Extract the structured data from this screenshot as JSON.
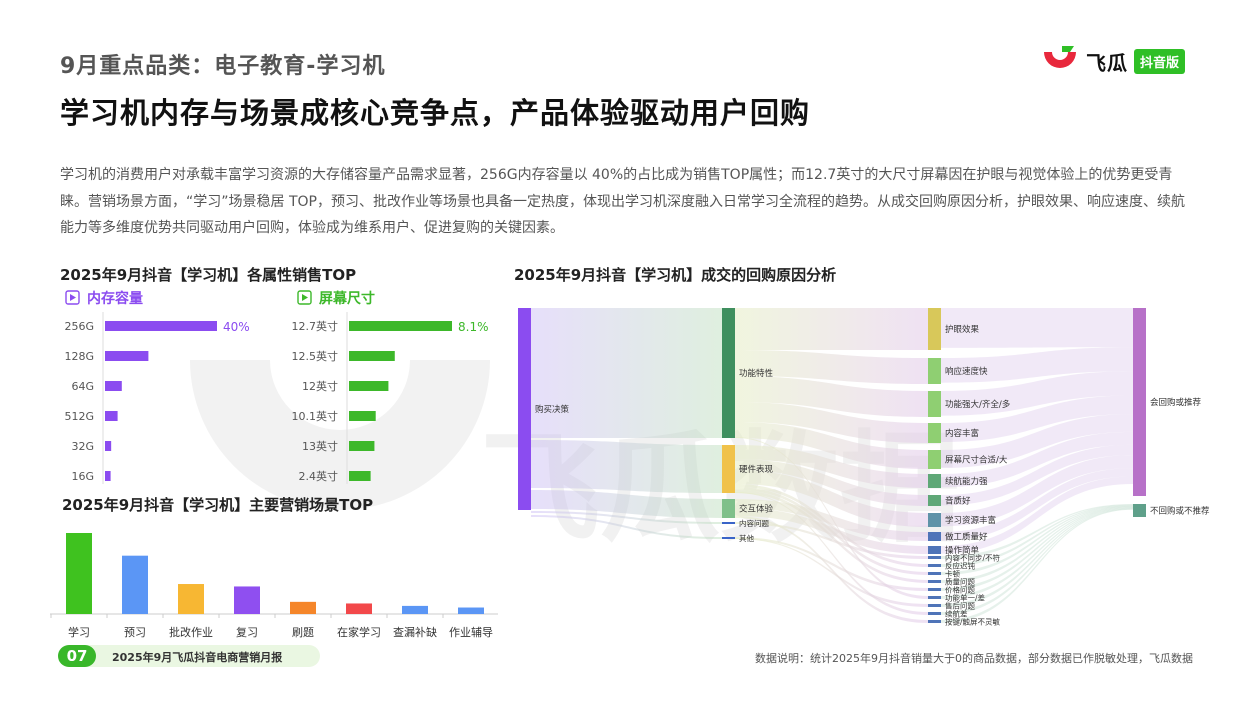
{
  "header": {
    "subtitle": "9月重点品类：电子教育-学习机",
    "headline": "学习机内存与场景成核心竞争点，产品体验驱动用户回购",
    "intro": "学习机的消费用户对承载丰富学习资源的大存储容量产品需求显著，256G内存容量以  40%的占比成为销售TOP属性；而12.7英寸的大尺寸屏幕因在护眼与视觉体验上的优势更受青睐。营销场景方面，“学习”场景稳居 TOP，预习、批改作业等场景也具备一定热度，体现出学习机深度融入日常学习全流程的趋势。从成交回购原因分析，护眼效果、响应速度、续航能力等多维度优势共同驱动用户回购，体验成为维系用户、促进复购的关键因素。"
  },
  "logo": {
    "text": "飞瓜",
    "badge": "抖音版",
    "brand_red": "#e8283c",
    "brand_green": "#2fbf26"
  },
  "watermark": "飞瓜数据",
  "panels": {
    "attr_title": "2025年9月抖音【学习机】各属性销售TOP",
    "scene_title": "2025年9月抖音【学习机】主要营销场景TOP",
    "sankey_title": "2025年9月抖音【学习机】成交的回购原因分析"
  },
  "footer": {
    "page_number": "07",
    "report": "2025年9月飞瓜抖音电商营销月报",
    "note": "数据说明：统计2025年9月抖音销量大于0的商品数据，部分数据已作脱敏处理，飞瓜数据"
  },
  "chart_data": [
    {
      "type": "bar",
      "orientation": "horizontal",
      "title": "内存容量",
      "icon": "play-icon",
      "color": "#8b4cf0",
      "categories": [
        "256G",
        "128G",
        "64G",
        "512G",
        "32G",
        "16G"
      ],
      "values": [
        40,
        15.5,
        6,
        4.5,
        2.2,
        2
      ],
      "value_labels": [
        "40%",
        "",
        "",
        "",
        "",
        ""
      ],
      "unit": "%"
    },
    {
      "type": "bar",
      "orientation": "horizontal",
      "title": "屏幕尺寸",
      "icon": "play-icon",
      "color": "#3db82a",
      "categories": [
        "12.7英寸",
        "12.5英寸",
        "12英寸",
        "10.1英寸",
        "13英寸",
        "2.4英寸"
      ],
      "values": [
        8.1,
        3.6,
        3.1,
        2.1,
        2.0,
        1.7
      ],
      "value_labels": [
        "8.1%",
        "",
        "",
        "",
        "",
        ""
      ],
      "unit": "%"
    },
    {
      "type": "bar",
      "orientation": "vertical",
      "categories": [
        "学习",
        "预习",
        "批改作业",
        "复习",
        "刷题",
        "在家学习",
        "查漏补缺",
        "作业辅导"
      ],
      "values": [
        100,
        72,
        37,
        34,
        15,
        13,
        10,
        8
      ],
      "colors": [
        "#3fc21f",
        "#5b96f5",
        "#f7b733",
        "#8f4ff0",
        "#f5862a",
        "#f2484a",
        "#5b96f5",
        "#5b96f5"
      ]
    },
    {
      "type": "sankey",
      "nodes": [
        {
          "id": "buy",
          "label": "购买决策",
          "color": "#8b4cf0",
          "value": 100
        },
        {
          "id": "func",
          "label": "功能特性",
          "color": "#3f8f5f",
          "value": 58
        },
        {
          "id": "hw",
          "label": "硬件表现",
          "color": "#f0c24a",
          "value": 23
        },
        {
          "id": "ix",
          "label": "交互体验",
          "color": "#7fc08a",
          "value": 9
        },
        {
          "id": "content",
          "label": "内容问题",
          "color": "#3a64c8",
          "value": 1
        },
        {
          "id": "other",
          "label": "其他",
          "color": "#3a64c8",
          "value": 1
        },
        {
          "id": "r1",
          "label": "护眼效果",
          "color": "#d8c85a",
          "value": 18
        },
        {
          "id": "r2",
          "label": "响应速度快",
          "color": "#8fcf72",
          "value": 11
        },
        {
          "id": "r3",
          "label": "功能强大/齐全/多",
          "color": "#8fcf72",
          "value": 10
        },
        {
          "id": "r4",
          "label": "内容丰富",
          "color": "#8fcf72",
          "value": 8
        },
        {
          "id": "r5",
          "label": "屏幕尺寸合适/大",
          "color": "#8fcf72",
          "value": 7
        },
        {
          "id": "r6",
          "label": "续航能力强",
          "color": "#5fa877",
          "value": 5
        },
        {
          "id": "r7",
          "label": "音质好",
          "color": "#5fa877",
          "value": 4
        },
        {
          "id": "r8",
          "label": "学习资源丰富",
          "color": "#5f93a8",
          "value": 4
        },
        {
          "id": "r9",
          "label": "做工质量好",
          "color": "#4f74b8",
          "value": 3
        },
        {
          "id": "r10",
          "label": "操作简单",
          "color": "#4f74b8",
          "value": 2
        },
        {
          "id": "r11",
          "label": "内容不同步/不符",
          "color": "#4f74b8",
          "value": 1
        },
        {
          "id": "r12",
          "label": "反应迟钝",
          "color": "#4f74b8",
          "value": 1
        },
        {
          "id": "r13",
          "label": "卡顿",
          "color": "#4f74b8",
          "value": 1
        },
        {
          "id": "r14",
          "label": "质量问题",
          "color": "#4f74b8",
          "value": 1
        },
        {
          "id": "r15",
          "label": "价格问题",
          "color": "#4f74b8",
          "value": 1
        },
        {
          "id": "r16",
          "label": "功能单一/差",
          "color": "#4f74b8",
          "value": 1
        },
        {
          "id": "r17",
          "label": "售后问题",
          "color": "#4f74b8",
          "value": 1
        },
        {
          "id": "r18",
          "label": "续航差",
          "color": "#4f74b8",
          "value": 1
        },
        {
          "id": "r19",
          "label": "按键/触屏不灵敏",
          "color": "#4f74b8",
          "value": 1
        },
        {
          "id": "yes",
          "label": "会回购或推荐",
          "color": "#b771c8",
          "value": 88
        },
        {
          "id": "no",
          "label": "不回购或不推荐",
          "color": "#5fa08a",
          "value": 5
        }
      ]
    }
  ]
}
